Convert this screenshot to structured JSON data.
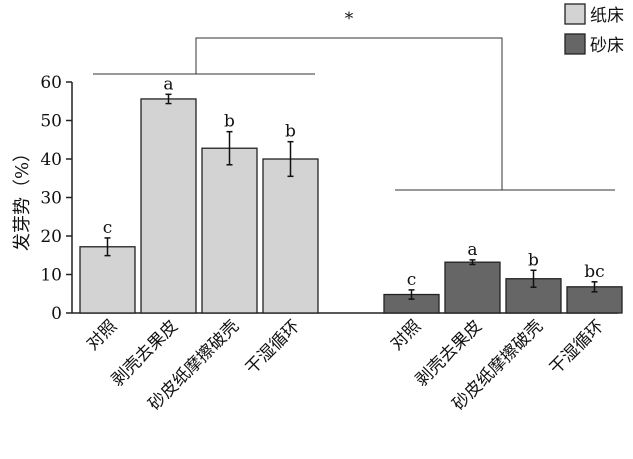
{
  "chart_data": {
    "type": "bar",
    "ylabel": "发芽势（%）",
    "ylim": [
      0,
      60
    ],
    "yticks": [
      0,
      10,
      20,
      30,
      40,
      50,
      60
    ],
    "grid": false,
    "legend_position": "top-right",
    "group_significance": "*",
    "series": [
      {
        "name": "纸床",
        "color": "#d3d3d3",
        "categories": [
          "对照",
          "剥壳去果皮",
          "砂皮纸摩擦破壳",
          "干湿循环"
        ],
        "values": [
          17.2,
          55.6,
          42.8,
          40.0
        ],
        "errors": [
          2.3,
          1.2,
          4.3,
          4.5
        ],
        "letters": [
          "c",
          "a",
          "b",
          "b"
        ]
      },
      {
        "name": "砂床",
        "color": "#666666",
        "categories": [
          "对照",
          "剥壳去果皮",
          "砂皮纸摩擦破壳",
          "干湿循环"
        ],
        "values": [
          4.8,
          13.2,
          8.9,
          6.8
        ],
        "errors": [
          1.2,
          0.6,
          2.2,
          1.3
        ],
        "letters": [
          "c",
          "a",
          "b",
          "bc"
        ]
      }
    ]
  }
}
